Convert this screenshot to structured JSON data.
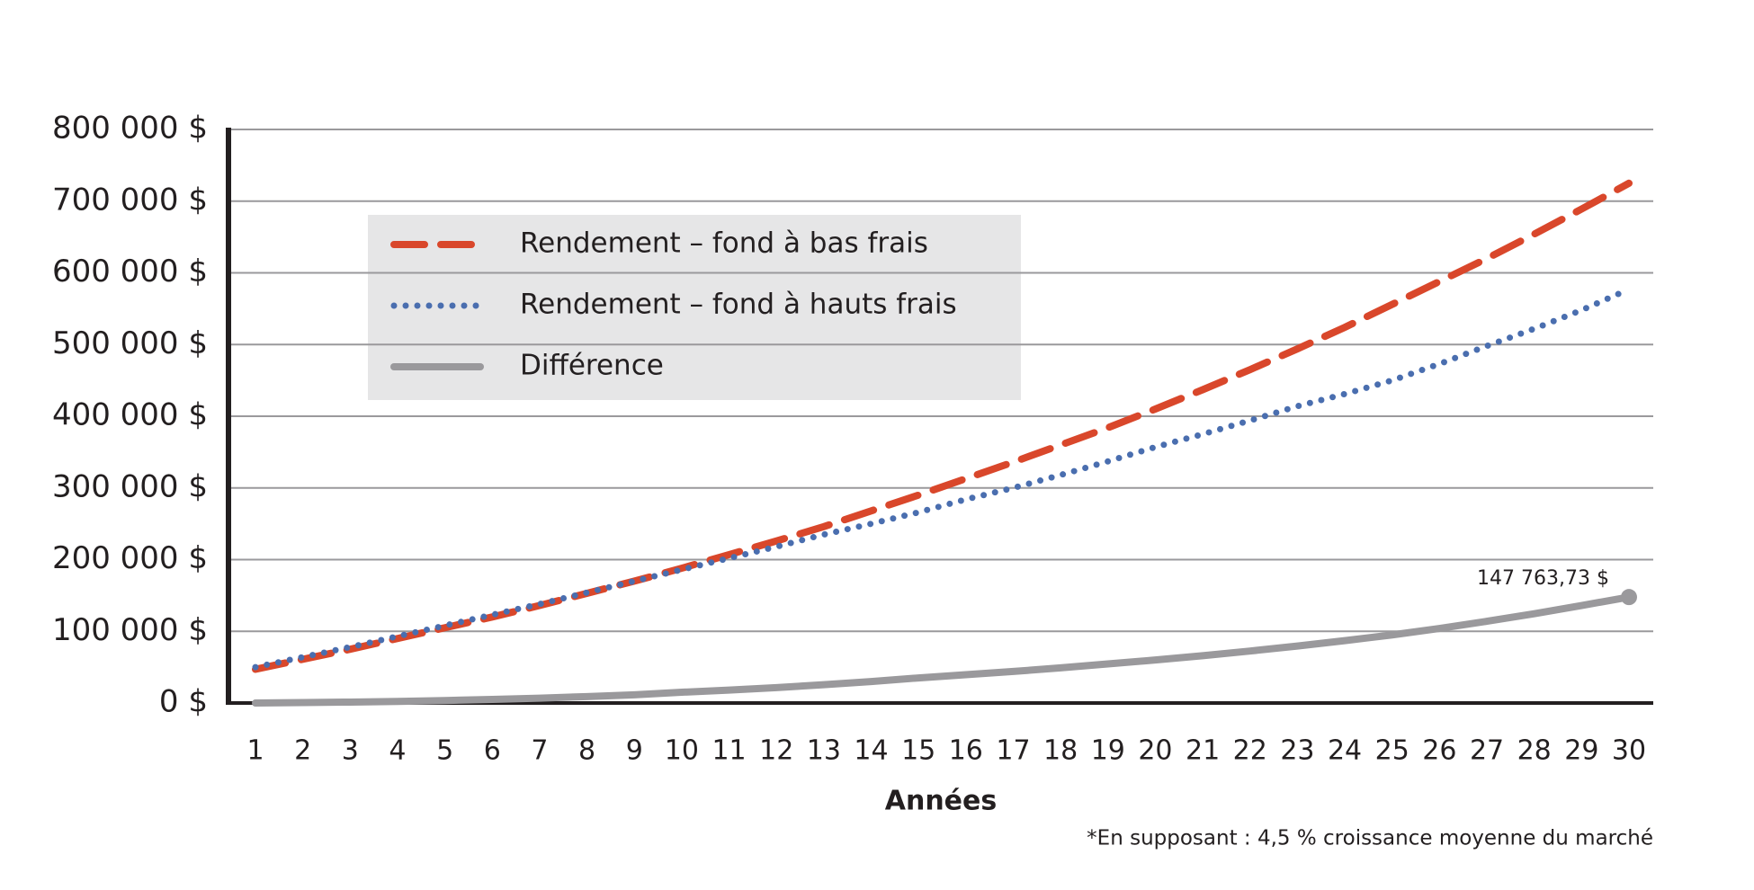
{
  "chart_data": {
    "type": "line",
    "x_label": "Années",
    "note": "*En supposant : 4,5 % croissance moyenne du marché",
    "categories": [
      "1",
      "2",
      "3",
      "4",
      "5",
      "6",
      "7",
      "8",
      "9",
      "10",
      "11",
      "12",
      "13",
      "14",
      "15",
      "16",
      "17",
      "18",
      "19",
      "20",
      "21",
      "22",
      "23",
      "24",
      "25",
      "26",
      "27",
      "28",
      "29",
      "30"
    ],
    "series": [
      {
        "name": "Rendement – fond à bas frais",
        "color": "#d9472b",
        "style": "dashed",
        "values": [
          47000,
          61000,
          75000,
          90000,
          105000,
          120000,
          136000,
          153000,
          170000,
          188000,
          207000,
          226000,
          246000,
          268000,
          290000,
          313000,
          336000,
          360000,
          384000,
          410000,
          437000,
          465000,
          494000,
          524000,
          556000,
          588000,
          620000,
          654000,
          689000,
          725000
        ]
      },
      {
        "name": "Rendement – fond à hauts frais",
        "color": "#4a6eaf",
        "style": "dotted",
        "values": [
          50000,
          64000,
          78000,
          93000,
          108000,
          123000,
          138000,
          154000,
          170000,
          186000,
          202000,
          218000,
          235000,
          250000,
          266000,
          284000,
          300000,
          318000,
          337000,
          357000,
          375000,
          394000,
          414000,
          431000,
          450000,
          473000,
          498000,
          522000,
          548000,
          577000
        ]
      },
      {
        "name": "Différence",
        "color": "#9a999c",
        "style": "solid",
        "values": [
          0,
          600,
          1300,
          2200,
          3500,
          5000,
          6800,
          9000,
          11500,
          15000,
          18000,
          21500,
          25500,
          30000,
          35000,
          39500,
          44000,
          49000,
          54500,
          60000,
          66000,
          72500,
          79500,
          87000,
          95000,
          104000,
          114000,
          124500,
          136000,
          147763.73
        ],
        "value_labels": [
          null,
          null,
          null,
          null,
          null,
          null,
          null,
          null,
          null,
          null,
          null,
          null,
          null,
          null,
          null,
          null,
          null,
          null,
          null,
          null,
          null,
          null,
          null,
          null,
          null,
          null,
          null,
          null,
          null,
          "147 763,73 $"
        ]
      }
    ],
    "ylim": [
      0,
      800000
    ],
    "yticks": [
      {
        "value": 0,
        "label": "0 $"
      },
      {
        "value": 100000,
        "label": "100 000 $"
      },
      {
        "value": 200000,
        "label": "200 000 $"
      },
      {
        "value": 300000,
        "label": "300 000 $"
      },
      {
        "value": 400000,
        "label": "400 000 $"
      },
      {
        "value": 500000,
        "label": "500 000 $"
      },
      {
        "value": 600000,
        "label": "600 000 $"
      },
      {
        "value": 700000,
        "label": "700 000 $"
      },
      {
        "value": 800000,
        "label": "800 000 $"
      }
    ],
    "grid": true
  }
}
